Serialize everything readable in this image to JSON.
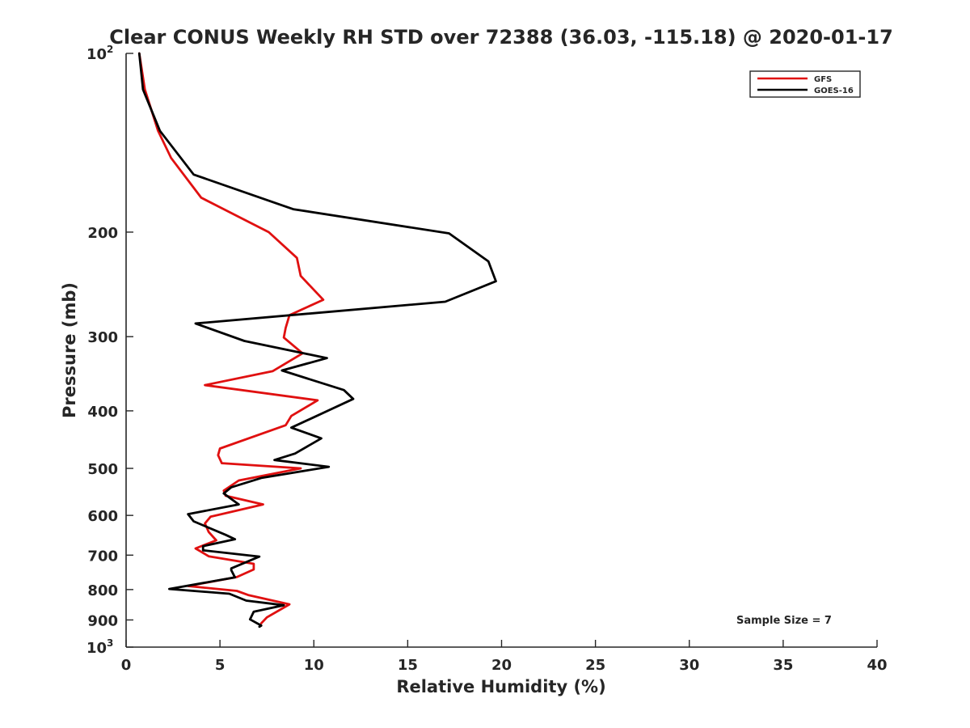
{
  "chart_data": {
    "type": "line",
    "title": "Clear CONUS Weekly RH STD over 72388 (36.03, -115.18) @ 2020-01-17",
    "xlabel": "Relative Humidity (%)",
    "ylabel": "Pressure (mb)",
    "xlim": [
      0,
      40
    ],
    "ylim": [
      100,
      1000
    ],
    "yscale": "log",
    "y_reversed": true,
    "xticks": [
      {
        "value": 0,
        "label": "0"
      },
      {
        "value": 5,
        "label": "5"
      },
      {
        "value": 10,
        "label": "10"
      },
      {
        "value": 15,
        "label": "15"
      },
      {
        "value": 20,
        "label": "20"
      },
      {
        "value": 25,
        "label": "25"
      },
      {
        "value": 30,
        "label": "30"
      },
      {
        "value": 35,
        "label": "35"
      },
      {
        "value": 40,
        "label": "40"
      }
    ],
    "yticks": [
      {
        "value": 100,
        "base": "10",
        "exp": "2"
      },
      {
        "value": 200,
        "label": "200"
      },
      {
        "value": 300,
        "label": "300"
      },
      {
        "value": 400,
        "label": "400"
      },
      {
        "value": 500,
        "label": "500"
      },
      {
        "value": 600,
        "label": "600"
      },
      {
        "value": 700,
        "label": "700"
      },
      {
        "value": 800,
        "label": "800"
      },
      {
        "value": 900,
        "label": "900"
      },
      {
        "value": 1000,
        "base": "10",
        "exp": "3"
      }
    ],
    "grid": false,
    "legend_position": "top-right",
    "series": [
      {
        "name": "GFS",
        "color": "#e01010",
        "points": [
          [
            0.7,
            100
          ],
          [
            1.0,
            115
          ],
          [
            1.7,
            135
          ],
          [
            2.4,
            150
          ],
          [
            4.0,
            175
          ],
          [
            7.6,
            200
          ],
          [
            9.1,
            221
          ],
          [
            9.3,
            237
          ],
          [
            10.5,
            260
          ],
          [
            8.7,
            276
          ],
          [
            8.5,
            290
          ],
          [
            8.4,
            301
          ],
          [
            9.4,
            320
          ],
          [
            7.8,
            343
          ],
          [
            4.2,
            362
          ],
          [
            10.2,
            384
          ],
          [
            8.8,
            408
          ],
          [
            8.5,
            423
          ],
          [
            5.0,
            463
          ],
          [
            4.9,
            475
          ],
          [
            5.1,
            490
          ],
          [
            9.3,
            500
          ],
          [
            6.0,
            524
          ],
          [
            5.2,
            545
          ],
          [
            5.3,
            556
          ],
          [
            7.3,
            575
          ],
          [
            4.5,
            603
          ],
          [
            4.2,
            619
          ],
          [
            4.4,
            640
          ],
          [
            4.8,
            661
          ],
          [
            3.7,
            682
          ],
          [
            4.4,
            703
          ],
          [
            6.8,
            724
          ],
          [
            6.8,
            740
          ],
          [
            5.9,
            762
          ],
          [
            3.3,
            789
          ],
          [
            5.9,
            804
          ],
          [
            6.5,
            817
          ],
          [
            8.7,
            847
          ],
          [
            7.5,
            891
          ],
          [
            7.2,
            912
          ]
        ]
      },
      {
        "name": "GOES-16",
        "color": "#000000",
        "points": [
          [
            0.7,
            100
          ],
          [
            0.9,
            115
          ],
          [
            1.8,
            135
          ],
          [
            3.6,
            160
          ],
          [
            8.9,
            183
          ],
          [
            17.2,
            201
          ],
          [
            19.3,
            224
          ],
          [
            19.7,
            242
          ],
          [
            17.0,
            262
          ],
          [
            3.7,
            285
          ],
          [
            6.3,
            305
          ],
          [
            10.7,
            326
          ],
          [
            8.3,
            342
          ],
          [
            11.6,
            369
          ],
          [
            12.1,
            382
          ],
          [
            10.0,
            410
          ],
          [
            8.8,
            427
          ],
          [
            10.4,
            445
          ],
          [
            9.0,
            472
          ],
          [
            7.9,
            484
          ],
          [
            10.8,
            497
          ],
          [
            7.2,
            519
          ],
          [
            5.6,
            538
          ],
          [
            5.2,
            551
          ],
          [
            5.6,
            563
          ],
          [
            6.0,
            575
          ],
          [
            3.3,
            597
          ],
          [
            3.6,
            614
          ],
          [
            5.3,
            647
          ],
          [
            5.8,
            658
          ],
          [
            4.1,
            676
          ],
          [
            4.1,
            687
          ],
          [
            7.1,
            704
          ],
          [
            5.6,
            737
          ],
          [
            5.6,
            742
          ],
          [
            5.8,
            763
          ],
          [
            2.3,
            798
          ],
          [
            5.5,
            813
          ],
          [
            6.4,
            835
          ],
          [
            8.4,
            850
          ],
          [
            6.8,
            872
          ],
          [
            6.6,
            898
          ],
          [
            7.2,
            920
          ],
          [
            7.1,
            924
          ]
        ]
      }
    ],
    "annotations": [
      {
        "text": "Sample Size = 7"
      }
    ]
  }
}
